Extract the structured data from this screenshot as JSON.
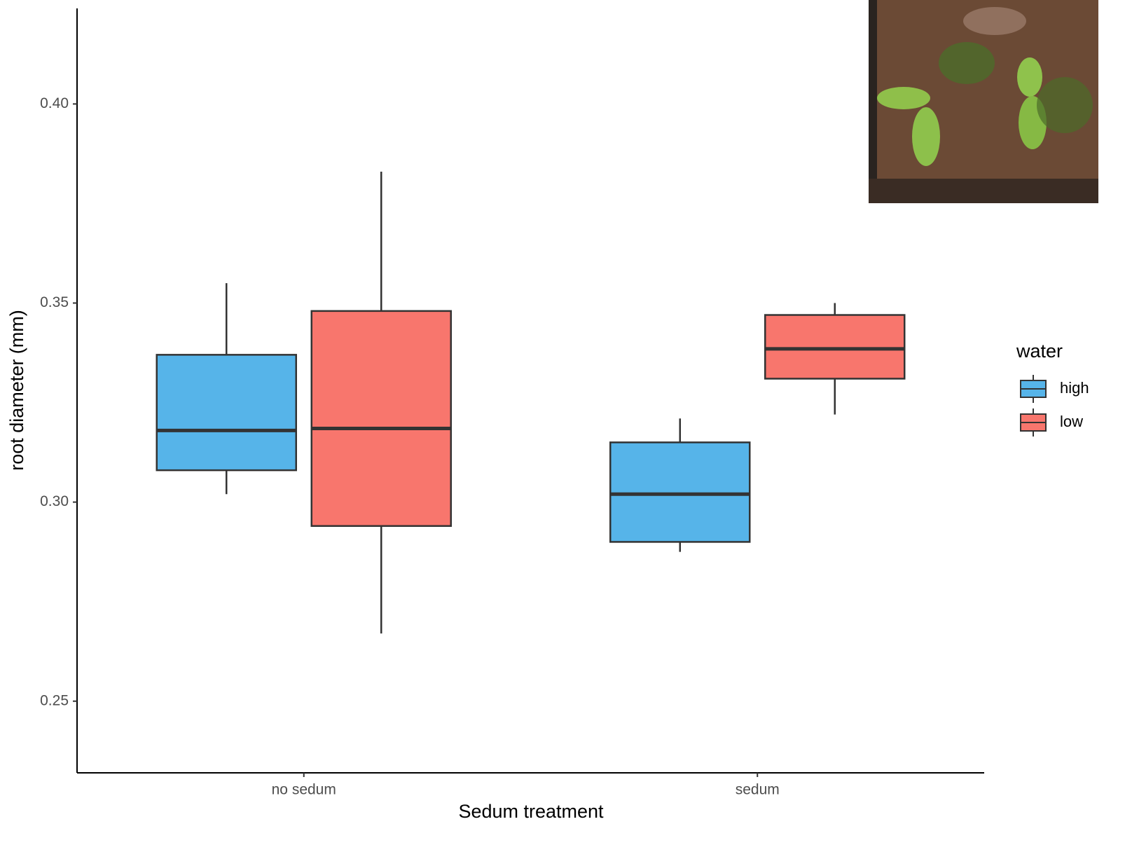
{
  "chart_data": {
    "type": "box",
    "x_label": "Sedum treatment",
    "y_label": "root diameter (mm)",
    "categories": [
      "no sedum",
      "sedum"
    ],
    "legend_title": "water",
    "legend_position": "right",
    "series": [
      {
        "name": "high",
        "color": "#56B4E9",
        "values": [
          {
            "min": 0.302,
            "q1": 0.308,
            "median": 0.318,
            "q3": 0.337,
            "max": 0.355
          },
          {
            "min": 0.2875,
            "q1": 0.29,
            "median": 0.302,
            "q3": 0.315,
            "max": 0.321
          }
        ]
      },
      {
        "name": "low",
        "color": "#F8766D",
        "values": [
          {
            "min": 0.267,
            "q1": 0.294,
            "median": 0.3185,
            "q3": 0.348,
            "max": 0.383
          },
          {
            "min": 0.322,
            "q1": 0.331,
            "median": 0.3385,
            "q3": 0.347,
            "max": 0.35
          }
        ]
      }
    ],
    "ylim": [
      0.232,
      0.424
    ],
    "yticks": [
      0.25,
      {
        "value": 0.3,
        "label": "0.30"
      },
      0.35,
      {
        "value": 0.4,
        "label": "0.40"
      }
    ],
    "grid": false
  }
}
